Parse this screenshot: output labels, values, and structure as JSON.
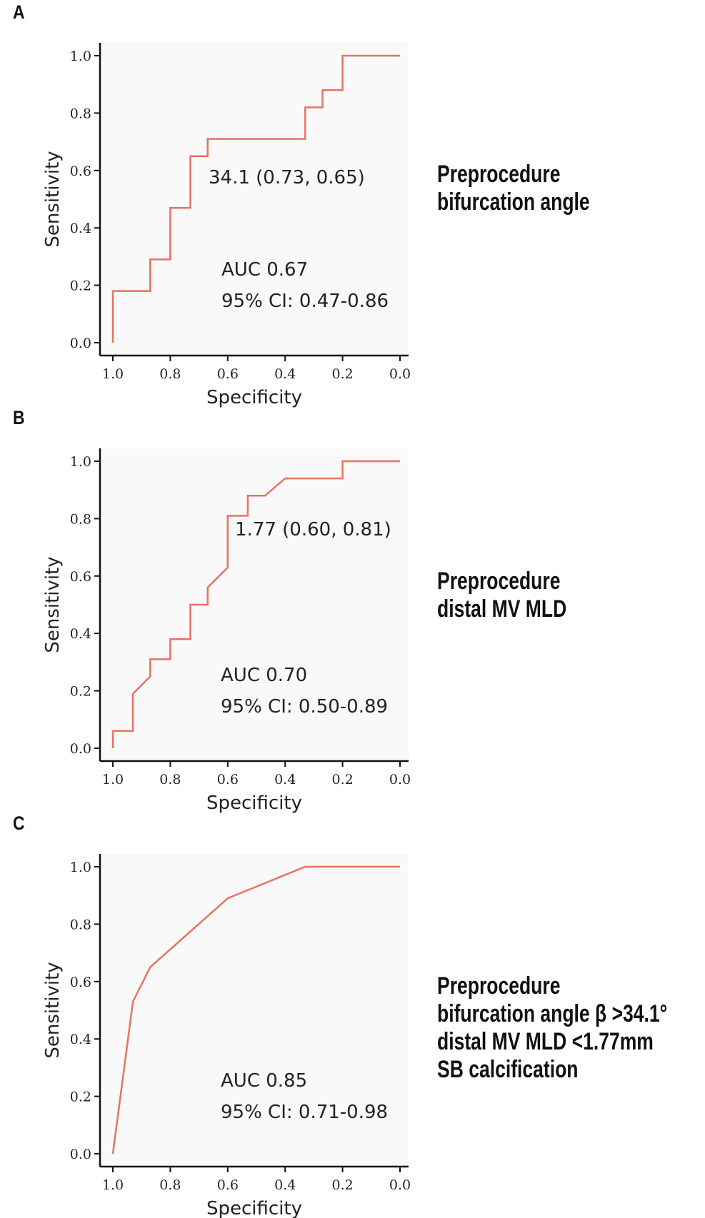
{
  "panels": [
    {
      "letter": "A",
      "side_label": [
        "Preprocedure",
        "bifurcation angle"
      ],
      "cutoff_label": "34.1 (0.73, 0.65)",
      "auc_label": "AUC 0.67",
      "ci_label": "95% CI: 0.47-0.86"
    },
    {
      "letter": "B",
      "side_label": [
        "Preprocedure",
        "distal MV MLD"
      ],
      "cutoff_label": "1.77 (0.60, 0.81)",
      "auc_label": "AUC 0.70",
      "ci_label": "95% CI: 0.50-0.89"
    },
    {
      "letter": "C",
      "side_label": [
        "Preprocedure",
        "bifurcation angle β >34.1°",
        "distal MV MLD <1.77mm",
        "SB calcification"
      ],
      "cutoff_label": "",
      "auc_label": "AUC 0.85",
      "ci_label": "95% CI: 0.71-0.98"
    }
  ],
  "colors": {
    "curve": "#E8735F",
    "plot_bg": "#F9F9F9",
    "axis": "#111111"
  },
  "chart_data": [
    {
      "type": "line",
      "xlabel": "Specificity",
      "ylabel": "Sensitivity",
      "xlim": [
        1.0,
        0.0
      ],
      "ylim": [
        0.0,
        1.0
      ],
      "x_reversed": true,
      "xticks": [
        "1.0",
        "0.8",
        "0.6",
        "0.4",
        "0.2",
        "0.0"
      ],
      "yticks": [
        "0.0",
        "0.2",
        "0.4",
        "0.6",
        "0.8",
        "1.0"
      ],
      "series": [
        {
          "x": [
            1.0,
            1.0,
            0.87,
            0.87,
            0.8,
            0.8,
            0.73,
            0.73,
            0.67,
            0.67,
            0.33,
            0.33,
            0.27,
            0.27,
            0.2,
            0.2,
            0.0
          ],
          "y": [
            0.0,
            0.18,
            0.18,
            0.29,
            0.29,
            0.47,
            0.47,
            0.65,
            0.65,
            0.71,
            0.71,
            0.82,
            0.82,
            0.88,
            0.88,
            1.0,
            1.0
          ]
        }
      ],
      "annotations": [
        "34.1 (0.73, 0.65)",
        "AUC 0.67",
        "95% CI: 0.47-0.86"
      ],
      "grid": false
    },
    {
      "type": "line",
      "xlabel": "Specificity",
      "ylabel": "Sensitivity",
      "xlim": [
        1.0,
        0.0
      ],
      "ylim": [
        0.0,
        1.0
      ],
      "x_reversed": true,
      "xticks": [
        "1.0",
        "0.8",
        "0.6",
        "0.4",
        "0.2",
        "0.0"
      ],
      "yticks": [
        "0.0",
        "0.2",
        "0.4",
        "0.6",
        "0.8",
        "1.0"
      ],
      "series": [
        {
          "x": [
            1.0,
            1.0,
            0.93,
            0.93,
            0.87,
            0.87,
            0.8,
            0.8,
            0.73,
            0.73,
            0.67,
            0.67,
            0.6,
            0.6,
            0.53,
            0.53,
            0.47,
            0.4,
            0.2,
            0.2,
            0.0
          ],
          "y": [
            0.0,
            0.06,
            0.06,
            0.19,
            0.25,
            0.31,
            0.31,
            0.38,
            0.38,
            0.5,
            0.5,
            0.56,
            0.63,
            0.81,
            0.81,
            0.88,
            0.88,
            0.94,
            0.94,
            1.0,
            1.0
          ]
        }
      ],
      "annotations": [
        "1.77 (0.60, 0.81)",
        "AUC 0.70",
        "95% CI: 0.50-0.89"
      ],
      "grid": false
    },
    {
      "type": "line",
      "xlabel": "Specificity",
      "ylabel": "Sensitivity",
      "xlim": [
        1.0,
        0.0
      ],
      "ylim": [
        0.0,
        1.0
      ],
      "x_reversed": true,
      "xticks": [
        "1.0",
        "0.8",
        "0.6",
        "0.4",
        "0.2",
        "0.0"
      ],
      "yticks": [
        "0.0",
        "0.2",
        "0.4",
        "0.6",
        "0.8",
        "1.0"
      ],
      "series": [
        {
          "x": [
            1.0,
            0.93,
            0.87,
            0.6,
            0.33,
            0.0
          ],
          "y": [
            0.0,
            0.53,
            0.65,
            0.89,
            1.0,
            1.0
          ]
        }
      ],
      "annotations": [
        "AUC 0.85",
        "95% CI: 0.71-0.98"
      ],
      "grid": false
    }
  ]
}
